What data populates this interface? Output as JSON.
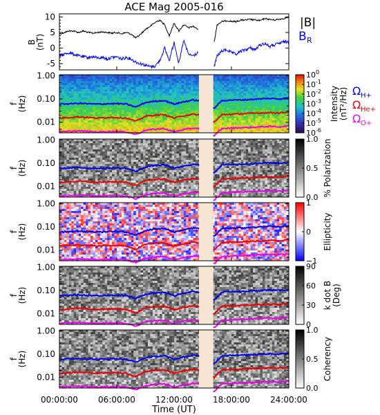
{
  "chart_data": [
    {
      "type": "line",
      "title": "ACE Mag 2005-016",
      "ylabel": "B",
      "yunit": "(nT)",
      "ylim": [
        -7,
        11
      ],
      "yticks": [
        -5,
        0,
        5,
        10
      ],
      "series": [
        {
          "name": "|B|",
          "color": "#000000",
          "x": [
            0,
            0.5,
            1,
            1.5,
            2,
            2.5,
            3,
            3.5,
            4,
            4.5,
            5,
            5.5,
            6,
            6.5,
            7,
            7.5,
            8,
            8.5,
            9,
            9.5,
            10,
            10.5,
            11,
            11.5,
            12,
            12.5,
            13,
            13.5,
            14,
            14.5,
            16.2,
            16.5,
            17,
            17.5,
            18,
            18.5,
            19,
            19.5,
            20,
            20.5,
            21,
            21.5,
            22,
            22.5,
            23,
            23.5,
            24
          ],
          "values": [
            4.5,
            5.0,
            5.5,
            5.5,
            5.0,
            5.5,
            5.0,
            4.8,
            5.0,
            5.2,
            5.0,
            4.8,
            5.0,
            4.6,
            5.0,
            4.5,
            3.2,
            4.5,
            6.0,
            7.0,
            8.2,
            9.0,
            7.5,
            4.0,
            8.0,
            5.5,
            7.5,
            6.5,
            7.0,
            6.0,
            2.0,
            7.5,
            8.5,
            8.8,
            8.6,
            8.5,
            9.0,
            9.0,
            9.2,
            9.0,
            8.8,
            9.5,
            9.2,
            9.0,
            9.3,
            9.5,
            10.0
          ]
        },
        {
          "name": "B_R",
          "color": "#0000ee",
          "x": [
            0,
            0.5,
            1,
            1.5,
            2,
            2.5,
            3,
            3.5,
            4,
            4.5,
            5,
            5.5,
            6,
            6.5,
            7,
            7.5,
            8,
            8.5,
            9,
            9.5,
            10,
            10.5,
            11,
            11.5,
            12,
            12.5,
            13,
            13.5,
            14,
            14.5,
            16.2,
            16.5,
            17,
            17.5,
            18,
            18.5,
            19,
            19.5,
            20,
            20.5,
            21,
            21.5,
            22,
            22.5,
            23,
            23.5,
            24
          ],
          "values": [
            -2.5,
            -2.0,
            -1.5,
            -2.0,
            -2.5,
            -2.8,
            -3.0,
            -2.8,
            -3.2,
            -3.0,
            -3.5,
            -3.0,
            -2.8,
            -3.5,
            -3.0,
            -3.5,
            -4.5,
            -5.0,
            -5.5,
            -6.0,
            -5.8,
            -4.0,
            0.0,
            -4.0,
            2.0,
            -5.0,
            2.5,
            -2.0,
            -2.5,
            -1.5,
            -6.0,
            -2.5,
            -1.0,
            -0.5,
            -1.5,
            -2.0,
            -1.0,
            -0.5,
            0.0,
            -0.5,
            1.0,
            1.5,
            0.5,
            1.0,
            1.5,
            2.0,
            2.0
          ]
        }
      ],
      "legend": [
        "|B|",
        "B",
        "R"
      ]
    },
    {
      "type": "heatmap",
      "panel": "intensity",
      "ylabel": "f",
      "yunit": "(Hz)",
      "yticks": [
        "1.00",
        "0.10",
        "0.01"
      ],
      "colorbar": {
        "label": "Intensity",
        "unit": "(nT²/Hz)",
        "ticks": [
          "10",
          "10",
          "10",
          "10",
          "10",
          "10",
          "10"
        ],
        "exps": [
          "0",
          "-1",
          "-2",
          "-3",
          "-4",
          "-5",
          "-6"
        ]
      },
      "gyro_legend": [
        {
          "label": "Ω",
          "sub": "H+",
          "color": "#0000ee"
        },
        {
          "label": "Ω",
          "sub": "He+",
          "color": "#ee0000"
        },
        {
          "label": "Ω",
          "sub": "O+",
          "color": "#ee00ee"
        }
      ]
    },
    {
      "type": "heatmap",
      "panel": "polarization",
      "ylabel": "f",
      "yunit": "(Hz)",
      "yticks": [
        "1.00",
        "0.10",
        "0.01"
      ],
      "colorbar": {
        "label": "% Polarization",
        "ticks": [
          "1.0",
          "0.5",
          "0.0"
        ]
      }
    },
    {
      "type": "heatmap",
      "panel": "ellipticity",
      "ylabel": "f",
      "yunit": "(Hz)",
      "yticks": [
        "1.00",
        "0.10",
        "0.01"
      ],
      "colorbar": {
        "label": "Ellipticity",
        "ticks": [
          "1",
          "0",
          "−1"
        ]
      }
    },
    {
      "type": "heatmap",
      "panel": "kdotb",
      "ylabel": "f",
      "yunit": "(Hz)",
      "yticks": [
        "1.00",
        "0.10",
        "0.01"
      ],
      "colorbar": {
        "label": "k dot B",
        "unit": "(Deg)",
        "ticks": [
          "90",
          "60",
          "30",
          "0"
        ]
      }
    },
    {
      "type": "heatmap",
      "panel": "coherency",
      "ylabel": "f",
      "yunit": "(Hz)",
      "yticks": [
        "1.00",
        "0.10",
        "0.01"
      ],
      "colorbar": {
        "label": "Coherency",
        "ticks": [
          "1.0",
          "0.5",
          "0.0"
        ]
      }
    }
  ],
  "gyrofrequencies": {
    "x": [
      0,
      1,
      2,
      3,
      4,
      5,
      6,
      7,
      8,
      9,
      10,
      11,
      12,
      13,
      14,
      14.5,
      16.2,
      17,
      18,
      19,
      20,
      21,
      22,
      23,
      24
    ],
    "H+": [
      0.06,
      0.062,
      0.065,
      0.062,
      0.06,
      0.062,
      0.063,
      0.06,
      0.045,
      0.07,
      0.08,
      0.085,
      0.06,
      0.075,
      0.09,
      0.085,
      0.04,
      0.085,
      0.09,
      0.09,
      0.095,
      0.1,
      0.105,
      0.1,
      0.11
    ],
    "He+": [
      0.015,
      0.016,
      0.017,
      0.016,
      0.015,
      0.016,
      0.016,
      0.015,
      0.011,
      0.018,
      0.02,
      0.021,
      0.015,
      0.019,
      0.022,
      0.021,
      0.01,
      0.021,
      0.022,
      0.023,
      0.024,
      0.025,
      0.026,
      0.025,
      0.028
    ],
    "O+": [
      0.0038,
      0.004,
      0.0042,
      0.004,
      0.0038,
      0.004,
      0.004,
      0.0038,
      0.003,
      0.0045,
      0.005,
      0.0053,
      0.0038,
      0.0048,
      0.0056,
      0.0054,
      0.0026,
      0.0053,
      0.0056,
      0.0058,
      0.006,
      0.0063,
      0.0066,
      0.0063,
      0.007
    ]
  },
  "data_gap": [
    14.6,
    16.1
  ],
  "xaxis": {
    "label": "Time (UT)",
    "ticks": [
      "00:00:00",
      "06:00:00",
      "12:00:00",
      "18:00:00",
      "24:00:00"
    ],
    "tick_hours": [
      0,
      6,
      12,
      18,
      24
    ]
  },
  "colors": {
    "gap_fill": "#f5e6d3",
    "h_plus": "#0000ee",
    "he_plus": "#ee0000",
    "o_plus": "#ee00ee",
    "field_mag": "#000000",
    "field_radial": "#0000ee"
  }
}
